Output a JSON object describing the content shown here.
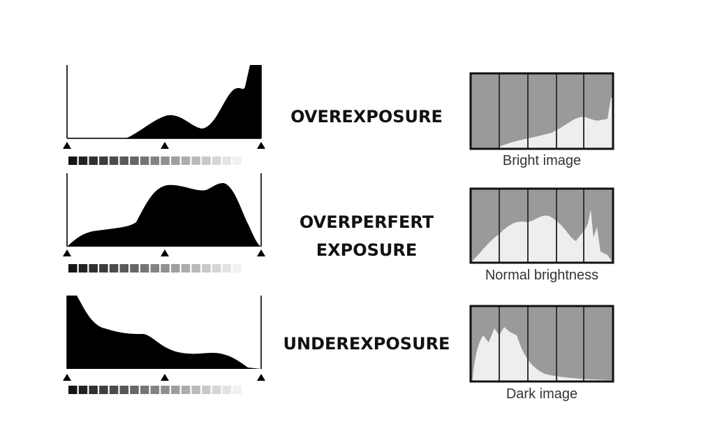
{
  "rows": [
    {
      "label_lines": [
        "OVEREXPOSURE"
      ],
      "caption": "Bright image"
    },
    {
      "label_lines": [
        "OVERPERFERT",
        "EXPOSURE"
      ],
      "caption": "Normal brightness"
    },
    {
      "label_lines": [
        "UNDEREXPOSURE"
      ],
      "caption": "Dark image"
    }
  ],
  "colors": {
    "histogram_fill": "#000000",
    "camera_bg": "#9a9a9a",
    "camera_fill": "#eeeeee",
    "grid_line": "#333333"
  }
}
